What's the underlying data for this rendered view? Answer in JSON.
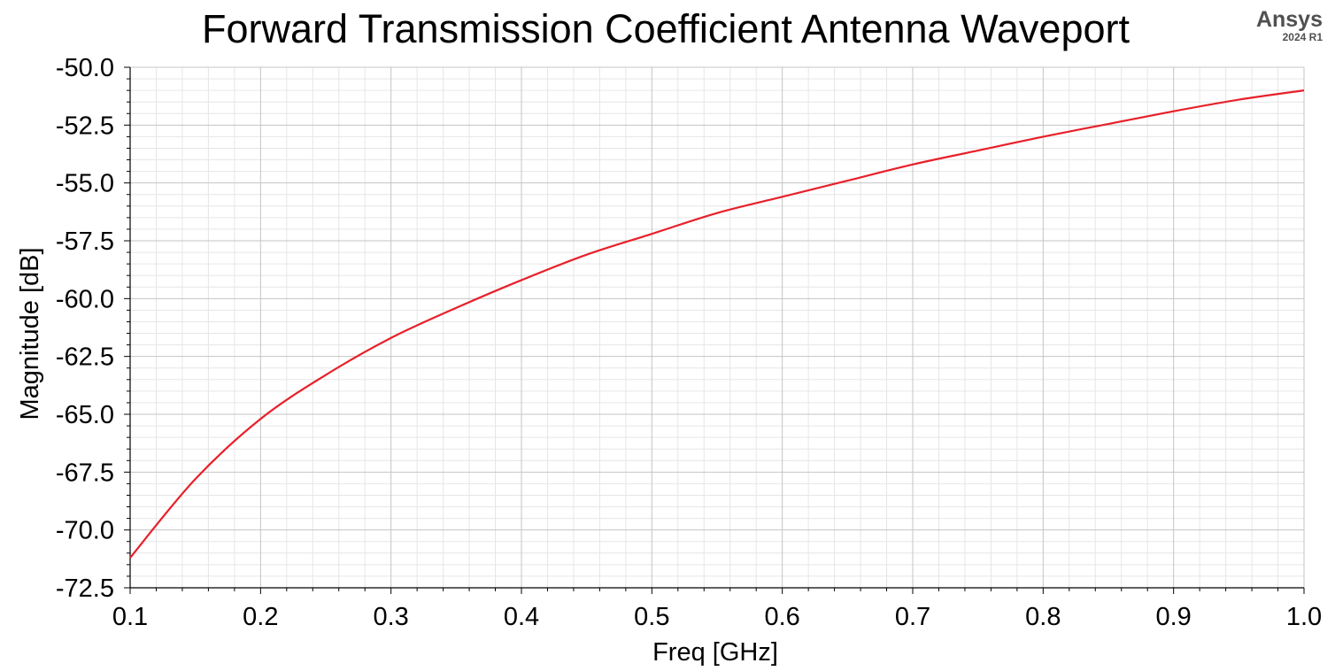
{
  "logo": {
    "name": "Ansys",
    "version": "2024 R1"
  },
  "chart_data": {
    "type": "line",
    "title": "Forward Transmission Coefficient Antenna Waveport",
    "xlabel": "Freq [GHz]",
    "ylabel": "Magnitude [dB]",
    "xlim": [
      0.1,
      1.0
    ],
    "ylim": [
      -72.5,
      -50.0
    ],
    "x_ticks": [
      "0.1",
      "0.2",
      "0.3",
      "0.4",
      "0.5",
      "0.6",
      "0.7",
      "0.8",
      "0.9",
      "1.0"
    ],
    "y_ticks": [
      "-50.0",
      "-52.5",
      "-55.0",
      "-57.5",
      "-60.0",
      "-62.5",
      "-65.0",
      "-67.5",
      "-70.0",
      "-72.5"
    ],
    "grid": true,
    "line_color": "#e8202a",
    "series": [
      {
        "x": [
          0.1,
          0.15,
          0.2,
          0.25,
          0.3,
          0.35,
          0.4,
          0.45,
          0.5,
          0.55,
          0.6,
          0.65,
          0.7,
          0.75,
          0.8,
          0.85,
          0.9,
          0.95,
          1.0
        ],
        "y": [
          -71.2,
          -67.8,
          -65.2,
          -63.3,
          -61.7,
          -60.4,
          -59.2,
          -58.1,
          -57.2,
          -56.3,
          -55.6,
          -54.9,
          -54.2,
          -53.6,
          -53.0,
          -52.45,
          -51.9,
          -51.4,
          -51.0
        ]
      }
    ]
  }
}
